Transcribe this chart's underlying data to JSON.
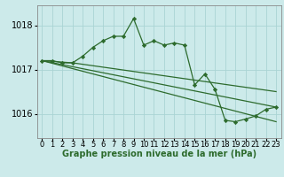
{
  "background_color": "#cceaea",
  "grid_color": "#aad4d4",
  "line_color": "#2d6b2d",
  "marker_color": "#2d6b2d",
  "xlabel": "Graphe pression niveau de la mer (hPa)",
  "ylim": [
    1015.45,
    1018.45
  ],
  "xlim": [
    -0.5,
    23.5
  ],
  "yticks": [
    1016,
    1017,
    1018
  ],
  "xticks": [
    0,
    1,
    2,
    3,
    4,
    5,
    6,
    7,
    8,
    9,
    10,
    11,
    12,
    13,
    14,
    15,
    16,
    17,
    18,
    19,
    20,
    21,
    22,
    23
  ],
  "series1_x": [
    0,
    1,
    2,
    3,
    4,
    5,
    6,
    7,
    8,
    9,
    10,
    11,
    12,
    13,
    14,
    15,
    16,
    17,
    18,
    19,
    20,
    21,
    22,
    23
  ],
  "series1_y": [
    1017.2,
    1017.2,
    1017.15,
    1017.15,
    1017.3,
    1017.5,
    1017.65,
    1017.75,
    1017.75,
    1018.15,
    1017.55,
    1017.65,
    1017.55,
    1017.6,
    1017.55,
    1016.65,
    1016.9,
    1016.55,
    1015.85,
    1015.82,
    1015.88,
    1015.95,
    1016.1,
    1016.15
  ],
  "series2_x": [
    0,
    23
  ],
  "series2_y": [
    1017.2,
    1016.15
  ],
  "series3_x": [
    0,
    23
  ],
  "series3_y": [
    1017.2,
    1015.82
  ],
  "series4_x": [
    0,
    3,
    23
  ],
  "series4_y": [
    1017.2,
    1017.15,
    1016.5
  ],
  "tick_fontsize": 6,
  "label_fontsize": 7
}
